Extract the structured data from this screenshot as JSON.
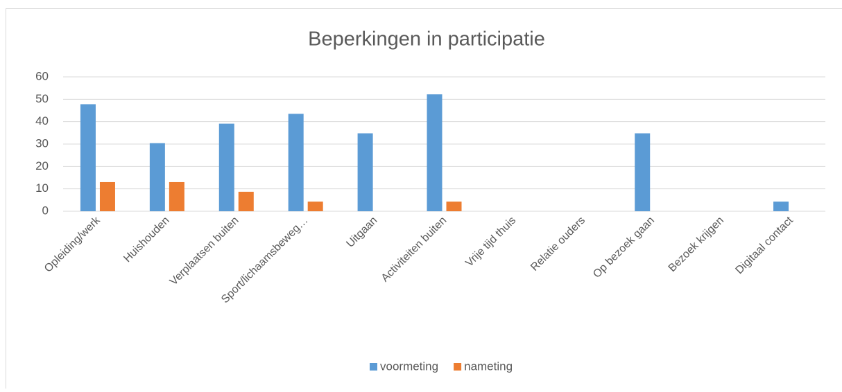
{
  "chart_data": {
    "type": "bar",
    "title": "Beperkingen in participatie",
    "categories": [
      "Opleiding/werk",
      "Huishouden",
      "Verplaatsen buiten",
      "Sport/lichaamsbeweg…",
      "Uitgaan",
      "Activiteiten buiten",
      "Vrije tijd thuis",
      "Relatie ouders",
      "Op bezoek gaan",
      "Bezoek krijgen",
      "Digitaal contact"
    ],
    "series": [
      {
        "name": "voormeting",
        "color": "#5b9bd5",
        "values": [
          47.8,
          30.4,
          39.1,
          43.5,
          34.8,
          52.2,
          0,
          0,
          34.8,
          0,
          4.3
        ]
      },
      {
        "name": "nameting",
        "color": "#ed7d31",
        "values": [
          13.0,
          13.0,
          8.7,
          4.3,
          0,
          4.3,
          0,
          0,
          0,
          0,
          0
        ]
      }
    ],
    "ylim": [
      0,
      60
    ],
    "yticks": [
      0,
      10,
      20,
      30,
      40,
      50,
      60
    ],
    "grid": true,
    "legend": "bottom"
  }
}
